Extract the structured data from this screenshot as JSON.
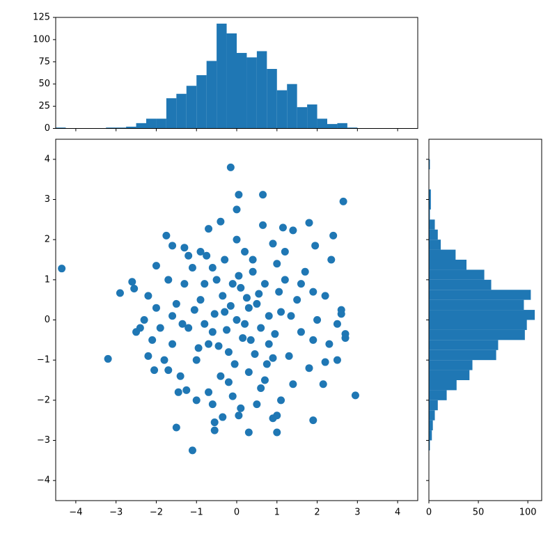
{
  "chart_data": [
    {
      "type": "scatter",
      "color": "#1f77b4",
      "xlim": [
        -4.5,
        4.5
      ],
      "ylim": [
        -4.5,
        4.5
      ],
      "xticks": [
        {
          "value": -4,
          "label": "−4"
        },
        {
          "value": -3,
          "label": "−3"
        },
        {
          "value": -2,
          "label": "−2"
        },
        {
          "value": -1,
          "label": "−1"
        },
        0,
        1,
        2,
        3,
        4
      ],
      "yticks": [
        {
          "value": -4,
          "label": "−4"
        },
        {
          "value": -3,
          "label": "−3"
        },
        {
          "value": -2,
          "label": "−2"
        },
        {
          "value": -1,
          "label": "−1"
        },
        0,
        1,
        2,
        3,
        4
      ],
      "x": [
        -4.35,
        -3.2,
        -2.9,
        -0.15,
        0.05,
        0.65,
        2.65,
        0,
        2.95,
        -1.1,
        -1.5,
        0.3,
        1.0,
        1.9,
        -0.55,
        -0.55,
        0.9,
        1.0,
        -0.35,
        0.05,
        2.4,
        2.35,
        1.8,
        1.4,
        1.15,
        0.65,
        -0.4,
        -0.7,
        -1.75,
        -2.6,
        -2.55,
        -2.5,
        -2.4,
        -2.2,
        -2.05,
        -1.7,
        -1.45,
        -1.25,
        2.6,
        2.6,
        2.7,
        2.7,
        2.5,
        2.15,
        2.2,
        1.9,
        1.95,
        -2.0,
        -1.6,
        -1.3,
        -1.2,
        -0.3,
        0.2,
        0.5,
        -0.6,
        0.1,
        -0.9,
        0.8,
        -0.2,
        1.1,
        -1.2,
        0.4,
        -0.5,
        1.3,
        -1.0,
        0.0,
        0.7,
        -0.8,
        1.5,
        -1.5,
        0.3,
        -0.4,
        1.0,
        -1.1,
        1.6,
        -1.6,
        0.6,
        -0.7,
        1.2,
        -1.3,
        2.0,
        -2.0,
        0.2,
        -0.1,
        1.8,
        -1.8,
        0.9,
        -0.9,
        1.4,
        -1.4,
        2.2,
        -2.2,
        0.5,
        -0.6,
        1.7,
        -1.7,
        2.3,
        -2.1,
        0.0,
        0.1,
        1.1,
        -1.0,
        1.2,
        -0.3,
        0.8,
        -0.8,
        0.35,
        -0.35,
        0.6,
        -0.15,
        0.25,
        -0.55,
        0.45,
        -0.7,
        0.95,
        -1.05,
        0.15,
        -0.25,
        0.55,
        -0.45,
        1.05,
        -0.95,
        0.75,
        -0.6,
        1.35,
        -1.35,
        0.05,
        -0.05,
        1.6,
        -1.6,
        0.4,
        -0.2,
        1.9,
        -1.9,
        0.7,
        -0.75,
        2.5,
        -2.3,
        0.9,
        -0.1,
        0.3
      ],
      "y": [
        1.28,
        -0.97,
        0.67,
        3.8,
        3.12,
        3.12,
        2.95,
        2.75,
        -1.88,
        -3.25,
        -2.68,
        -2.8,
        -2.8,
        -2.5,
        -2.75,
        -2.55,
        -2.45,
        -2.38,
        -2.42,
        -2.38,
        2.1,
        1.5,
        2.42,
        2.23,
        2.3,
        2.36,
        2.45,
        2.27,
        2.1,
        0.95,
        0.78,
        -0.3,
        -0.2,
        -0.9,
        -1.25,
        -1.25,
        -1.8,
        -1.75,
        0.25,
        0.15,
        -0.35,
        -0.45,
        -1.0,
        -1.6,
        -1.05,
        0.7,
        1.85,
        1.35,
        1.85,
        1.8,
        1.6,
        0.2,
        -0.1,
        0.4,
        -0.3,
        0.8,
        0.5,
        -0.6,
        -0.8,
        0.2,
        -0.2,
        1.2,
        1.0,
        -0.9,
        -1.0,
        0.0,
        0.9,
        0.9,
        0.5,
        0.4,
        -1.3,
        -1.4,
        1.4,
        1.3,
        -0.3,
        -0.6,
        -1.7,
        -1.8,
        1.0,
        0.9,
        0.0,
        0.3,
        1.7,
        -1.9,
        -1.2,
        -1.0,
        1.9,
        1.7,
        -1.6,
        -1.4,
        0.6,
        0.6,
        -2.1,
        -2.1,
        1.2,
        1.0,
        -0.6,
        -0.5,
        2.0,
        -2.2,
        -2.0,
        -2.0,
        1.7,
        1.5,
        0.1,
        -0.1,
        -0.5,
        0.6,
        -0.2,
        0.35,
        0.55,
        0.15,
        -0.85,
        -0.6,
        -0.35,
        0.25,
        -0.45,
        -0.25,
        0.65,
        -0.65,
        0.7,
        -0.7,
        -1.1,
        1.3,
        0.1,
        -0.1,
        1.1,
        -1.1,
        0.9,
        0.1,
        1.5,
        -1.55,
        -0.5,
        -0.2,
        -1.5,
        1.6,
        -0.1,
        0.0,
        -0.95,
        0.9,
        0.3
      ]
    },
    {
      "type": "histogram",
      "orientation": "vertical",
      "color": "#1f77b4",
      "xlim": [
        -4.5,
        4.5
      ],
      "ylim": [
        0,
        125
      ],
      "yticks": [
        0,
        25,
        50,
        75,
        100,
        125
      ],
      "bins": [
        -4.5,
        -4.25,
        -4,
        -3.75,
        -3.5,
        -3.25,
        -3,
        -2.75,
        -2.5,
        -2.25,
        -2,
        -1.75,
        -1.5,
        -1.25,
        -1,
        -0.75,
        -0.5,
        -0.25,
        0,
        0.25,
        0.5,
        0.75,
        1,
        1.25,
        1.5,
        1.75,
        2,
        2.25,
        2.5,
        2.75,
        3,
        3.25,
        3.5,
        3.75,
        4,
        4.25,
        4.5
      ],
      "counts": [
        1,
        0,
        0,
        0,
        0,
        1,
        1,
        2,
        6,
        11,
        11,
        34,
        39,
        48,
        60,
        76,
        118,
        107,
        85,
        80,
        87,
        67,
        43,
        50,
        24,
        27,
        11,
        5,
        6,
        1,
        0,
        0,
        0,
        0,
        0,
        0
      ]
    },
    {
      "type": "histogram",
      "orientation": "horizontal",
      "color": "#1f77b4",
      "xlim": [
        0,
        114
      ],
      "xticks": [
        0,
        50,
        100
      ],
      "ylim": [
        -4.5,
        4.5
      ],
      "bins": [
        -4.5,
        -4.25,
        -4,
        -3.75,
        -3.5,
        -3.25,
        -3,
        -2.75,
        -2.5,
        -2.25,
        -2,
        -1.75,
        -1.5,
        -1.25,
        -1,
        -0.75,
        -0.5,
        -0.25,
        0,
        0.25,
        0.5,
        0.75,
        1,
        1.25,
        1.5,
        1.75,
        2,
        2.25,
        2.5,
        2.75,
        3,
        3.25,
        3.5,
        3.75,
        4,
        4.25,
        4.5
      ],
      "counts": [
        0,
        0,
        0,
        0,
        0,
        1,
        3,
        4,
        6,
        9,
        18,
        28,
        41,
        44,
        68,
        70,
        97,
        99,
        107,
        96,
        103,
        63,
        56,
        38,
        27,
        12,
        9,
        6,
        1,
        2,
        2,
        0,
        0,
        1,
        0,
        0
      ]
    }
  ]
}
